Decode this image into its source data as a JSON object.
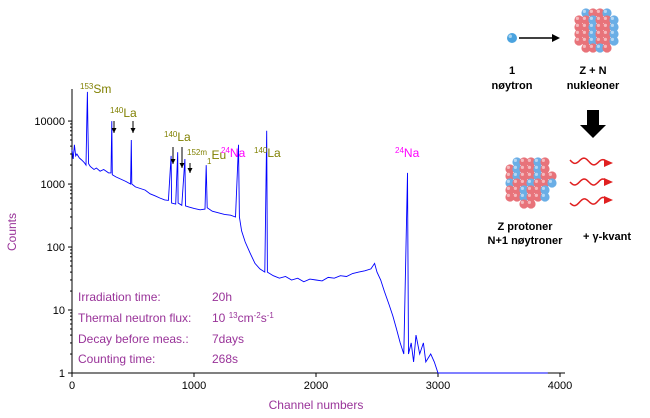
{
  "chart_data": {
    "type": "line",
    "xlabel": "Channel numbers",
    "ylabel": "Counts",
    "color": "#0000ff",
    "yscale": "log",
    "xlim": [
      0,
      4000
    ],
    "ylim": [
      1,
      30000
    ],
    "xticks": [
      0,
      1000,
      2000,
      3000,
      4000
    ],
    "yticks": [
      1,
      10,
      100,
      1000,
      10000
    ],
    "x": [
      0,
      10,
      20,
      30,
      40,
      60,
      80,
      100,
      115,
      122,
      126,
      130,
      136,
      150,
      180,
      200,
      230,
      260,
      300,
      320,
      326,
      330,
      360,
      400,
      440,
      480,
      486,
      490,
      520,
      560,
      600,
      640,
      680,
      720,
      760,
      790,
      812,
      816,
      850,
      866,
      870,
      900,
      925,
      930,
      960,
      1000,
      1050,
      1090,
      1100,
      1108,
      1150,
      1200,
      1250,
      1300,
      1340,
      1365,
      1372,
      1390,
      1420,
      1460,
      1500,
      1540,
      1580,
      1596,
      1602,
      1650,
      1700,
      1750,
      1800,
      1850,
      1900,
      1950,
      2000,
      2050,
      2100,
      2150,
      2200,
      2250,
      2300,
      2350,
      2400,
      2450,
      2480,
      2500,
      2530,
      2560,
      2600,
      2630,
      2660,
      2690,
      2720,
      2750,
      2758,
      2780,
      2800,
      2820,
      2850,
      2880,
      2900,
      2940,
      2970,
      3000,
      3100,
      3500,
      3900
    ],
    "values": [
      3500,
      2500,
      4200,
      2800,
      3000,
      2600,
      2400,
      2200,
      2000,
      12000,
      29000,
      8000,
      2100,
      1900,
      1700,
      1800,
      1600,
      1700,
      1500,
      1500,
      10000,
      1400,
      1300,
      1200,
      1100,
      1000,
      5000,
      1000,
      900,
      850,
      800,
      700,
      650,
      600,
      560,
      550,
      2800,
      500,
      480,
      3200,
      500,
      460,
      2500,
      450,
      430,
      410,
      390,
      400,
      2000,
      420,
      370,
      350,
      330,
      320,
      300,
      4200,
      300,
      180,
      120,
      80,
      55,
      45,
      40,
      7000,
      40,
      35,
      32,
      34,
      30,
      32,
      28,
      31,
      30,
      29,
      33,
      32,
      35,
      34,
      38,
      40,
      42,
      45,
      55,
      40,
      30,
      20,
      12,
      8,
      5,
      3,
      2,
      1500,
      2,
      3,
      1.5,
      4,
      2,
      3,
      1.5,
      2,
      1.5,
      1,
      1,
      1,
      1
    ],
    "annotations": [
      {
        "sup": "153",
        "element": "Sm",
        "color": "#808000"
      },
      {
        "sup": "140",
        "element": "La",
        "color": "#808000"
      },
      {
        "sup": "140",
        "element": "La",
        "color": "#808000"
      },
      {
        "sup": "152m",
        "sub": "1",
        "element": "Eu",
        "color": "#808000"
      },
      {
        "sup": "24",
        "element": "Na",
        "color": "#ff00ff"
      },
      {
        "sup": "140",
        "element": "La",
        "color": "#808000"
      },
      {
        "sup": "24",
        "element": "Na",
        "color": "#ff00ff"
      }
    ],
    "info": [
      {
        "label": "Irradiation time:",
        "value": [
          "20h"
        ]
      },
      {
        "label": "Thermal neutron flux:",
        "value": [
          "10 ",
          "13",
          "cm",
          "-2",
          "s",
          "-1"
        ]
      },
      {
        "label": "Decay before meas.:",
        "value": [
          "7days"
        ]
      },
      {
        "label": "Counting time:",
        "value": [
          "268s"
        ]
      }
    ]
  },
  "diagram": {
    "neutron": [
      "1",
      "nøytron"
    ],
    "nucleus": [
      "Z + N",
      "nukleoner"
    ],
    "product": [
      "Z protoner",
      "N+1 nøytroner"
    ],
    "gamma": "+ γ-kvant"
  }
}
